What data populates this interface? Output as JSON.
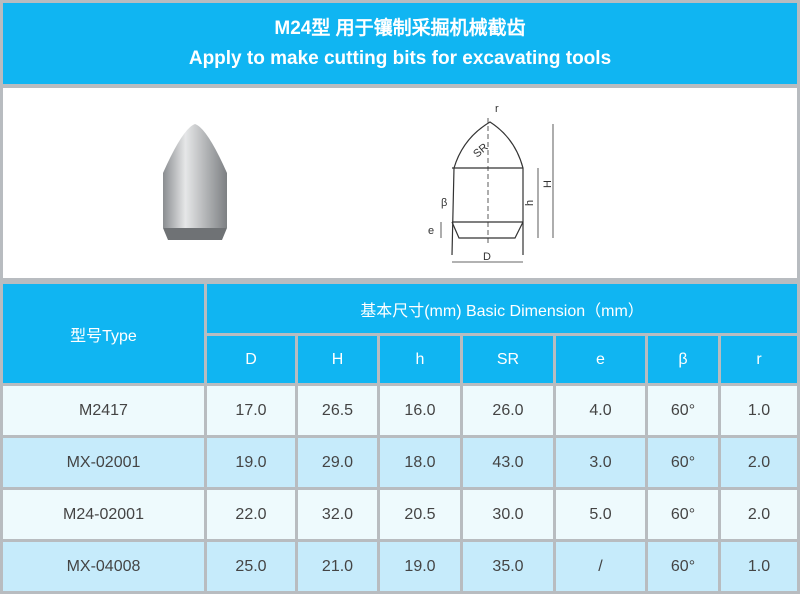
{
  "title": {
    "zh": "M24型 用于镶制采掘机械截齿",
    "en": "Apply to make cutting bits for excavating tools"
  },
  "drawing": {
    "labels": {
      "r": "r",
      "SR": "SR",
      "H": "H",
      "h": "h",
      "beta": "β",
      "e": "e",
      "D": "D"
    }
  },
  "table": {
    "type_header": "型号Type",
    "group_header": "基本尺寸(mm) Basic Dimension（mm）",
    "columns": [
      "D",
      "H",
      "h",
      "SR",
      "e",
      "β",
      "r"
    ],
    "rows": [
      [
        "M2417",
        "17.0",
        "26.5",
        "16.0",
        "26.0",
        "4.0",
        "60°",
        "1.0"
      ],
      [
        "MX-02001",
        "19.0",
        "29.0",
        "18.0",
        "43.0",
        "3.0",
        "60°",
        "2.0"
      ],
      [
        "M24-02001",
        "22.0",
        "32.0",
        "20.5",
        "30.0",
        "5.0",
        "60°",
        "2.0"
      ],
      [
        "MX-04008",
        "25.0",
        "21.0",
        "19.0",
        "35.0",
        "/",
        "60°",
        "1.0"
      ]
    ]
  },
  "colors": {
    "header": "#10b5f2",
    "row_light": "#eefafd",
    "row_alt": "#c6ebfb"
  }
}
